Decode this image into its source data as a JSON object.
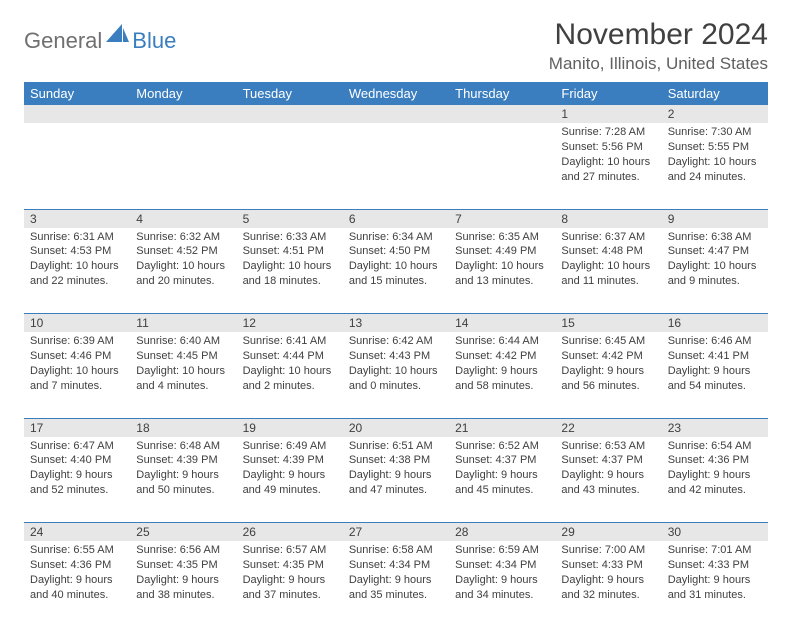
{
  "logo": {
    "text1": "General",
    "text2": "Blue"
  },
  "title": "November 2024",
  "location": "Manito, Illinois, United States",
  "colors": {
    "header_bg": "#3a7ebf",
    "header_fg": "#ffffff",
    "daynum_bg": "#e7e7e7",
    "row_border": "#3a7ebf",
    "text": "#404040",
    "logo_gray": "#707070",
    "logo_blue": "#3a7ebf"
  },
  "day_headers": [
    "Sunday",
    "Monday",
    "Tuesday",
    "Wednesday",
    "Thursday",
    "Friday",
    "Saturday"
  ],
  "weeks": [
    [
      {
        "n": "",
        "lines": []
      },
      {
        "n": "",
        "lines": []
      },
      {
        "n": "",
        "lines": []
      },
      {
        "n": "",
        "lines": []
      },
      {
        "n": "",
        "lines": []
      },
      {
        "n": "1",
        "lines": [
          "Sunrise: 7:28 AM",
          "Sunset: 5:56 PM",
          "Daylight: 10 hours",
          "and 27 minutes."
        ]
      },
      {
        "n": "2",
        "lines": [
          "Sunrise: 7:30 AM",
          "Sunset: 5:55 PM",
          "Daylight: 10 hours",
          "and 24 minutes."
        ]
      }
    ],
    [
      {
        "n": "3",
        "lines": [
          "Sunrise: 6:31 AM",
          "Sunset: 4:53 PM",
          "Daylight: 10 hours",
          "and 22 minutes."
        ]
      },
      {
        "n": "4",
        "lines": [
          "Sunrise: 6:32 AM",
          "Sunset: 4:52 PM",
          "Daylight: 10 hours",
          "and 20 minutes."
        ]
      },
      {
        "n": "5",
        "lines": [
          "Sunrise: 6:33 AM",
          "Sunset: 4:51 PM",
          "Daylight: 10 hours",
          "and 18 minutes."
        ]
      },
      {
        "n": "6",
        "lines": [
          "Sunrise: 6:34 AM",
          "Sunset: 4:50 PM",
          "Daylight: 10 hours",
          "and 15 minutes."
        ]
      },
      {
        "n": "7",
        "lines": [
          "Sunrise: 6:35 AM",
          "Sunset: 4:49 PM",
          "Daylight: 10 hours",
          "and 13 minutes."
        ]
      },
      {
        "n": "8",
        "lines": [
          "Sunrise: 6:37 AM",
          "Sunset: 4:48 PM",
          "Daylight: 10 hours",
          "and 11 minutes."
        ]
      },
      {
        "n": "9",
        "lines": [
          "Sunrise: 6:38 AM",
          "Sunset: 4:47 PM",
          "Daylight: 10 hours",
          "and 9 minutes."
        ]
      }
    ],
    [
      {
        "n": "10",
        "lines": [
          "Sunrise: 6:39 AM",
          "Sunset: 4:46 PM",
          "Daylight: 10 hours",
          "and 7 minutes."
        ]
      },
      {
        "n": "11",
        "lines": [
          "Sunrise: 6:40 AM",
          "Sunset: 4:45 PM",
          "Daylight: 10 hours",
          "and 4 minutes."
        ]
      },
      {
        "n": "12",
        "lines": [
          "Sunrise: 6:41 AM",
          "Sunset: 4:44 PM",
          "Daylight: 10 hours",
          "and 2 minutes."
        ]
      },
      {
        "n": "13",
        "lines": [
          "Sunrise: 6:42 AM",
          "Sunset: 4:43 PM",
          "Daylight: 10 hours",
          "and 0 minutes."
        ]
      },
      {
        "n": "14",
        "lines": [
          "Sunrise: 6:44 AM",
          "Sunset: 4:42 PM",
          "Daylight: 9 hours",
          "and 58 minutes."
        ]
      },
      {
        "n": "15",
        "lines": [
          "Sunrise: 6:45 AM",
          "Sunset: 4:42 PM",
          "Daylight: 9 hours",
          "and 56 minutes."
        ]
      },
      {
        "n": "16",
        "lines": [
          "Sunrise: 6:46 AM",
          "Sunset: 4:41 PM",
          "Daylight: 9 hours",
          "and 54 minutes."
        ]
      }
    ],
    [
      {
        "n": "17",
        "lines": [
          "Sunrise: 6:47 AM",
          "Sunset: 4:40 PM",
          "Daylight: 9 hours",
          "and 52 minutes."
        ]
      },
      {
        "n": "18",
        "lines": [
          "Sunrise: 6:48 AM",
          "Sunset: 4:39 PM",
          "Daylight: 9 hours",
          "and 50 minutes."
        ]
      },
      {
        "n": "19",
        "lines": [
          "Sunrise: 6:49 AM",
          "Sunset: 4:39 PM",
          "Daylight: 9 hours",
          "and 49 minutes."
        ]
      },
      {
        "n": "20",
        "lines": [
          "Sunrise: 6:51 AM",
          "Sunset: 4:38 PM",
          "Daylight: 9 hours",
          "and 47 minutes."
        ]
      },
      {
        "n": "21",
        "lines": [
          "Sunrise: 6:52 AM",
          "Sunset: 4:37 PM",
          "Daylight: 9 hours",
          "and 45 minutes."
        ]
      },
      {
        "n": "22",
        "lines": [
          "Sunrise: 6:53 AM",
          "Sunset: 4:37 PM",
          "Daylight: 9 hours",
          "and 43 minutes."
        ]
      },
      {
        "n": "23",
        "lines": [
          "Sunrise: 6:54 AM",
          "Sunset: 4:36 PM",
          "Daylight: 9 hours",
          "and 42 minutes."
        ]
      }
    ],
    [
      {
        "n": "24",
        "lines": [
          "Sunrise: 6:55 AM",
          "Sunset: 4:36 PM",
          "Daylight: 9 hours",
          "and 40 minutes."
        ]
      },
      {
        "n": "25",
        "lines": [
          "Sunrise: 6:56 AM",
          "Sunset: 4:35 PM",
          "Daylight: 9 hours",
          "and 38 minutes."
        ]
      },
      {
        "n": "26",
        "lines": [
          "Sunrise: 6:57 AM",
          "Sunset: 4:35 PM",
          "Daylight: 9 hours",
          "and 37 minutes."
        ]
      },
      {
        "n": "27",
        "lines": [
          "Sunrise: 6:58 AM",
          "Sunset: 4:34 PM",
          "Daylight: 9 hours",
          "and 35 minutes."
        ]
      },
      {
        "n": "28",
        "lines": [
          "Sunrise: 6:59 AM",
          "Sunset: 4:34 PM",
          "Daylight: 9 hours",
          "and 34 minutes."
        ]
      },
      {
        "n": "29",
        "lines": [
          "Sunrise: 7:00 AM",
          "Sunset: 4:33 PM",
          "Daylight: 9 hours",
          "and 32 minutes."
        ]
      },
      {
        "n": "30",
        "lines": [
          "Sunrise: 7:01 AM",
          "Sunset: 4:33 PM",
          "Daylight: 9 hours",
          "and 31 minutes."
        ]
      }
    ]
  ]
}
